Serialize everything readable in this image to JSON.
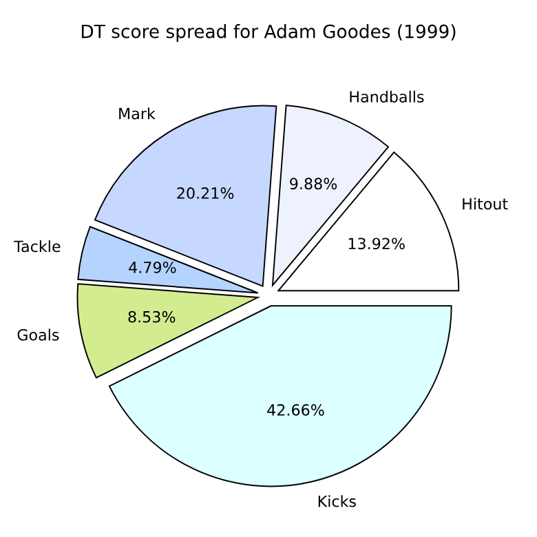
{
  "chart_data": {
    "type": "pie",
    "title": "DT score spread for Adam Goodes (1999)",
    "categories": [
      "Hitout",
      "Handballs",
      "Mark",
      "Tackle",
      "Goals",
      "Kicks"
    ],
    "values": [
      13.92,
      9.88,
      20.21,
      4.79,
      8.53,
      42.66
    ],
    "value_labels": [
      "13.92%",
      "9.88%",
      "20.21%",
      "4.79%",
      "8.53%",
      "42.66%"
    ],
    "colors": [
      "#ffffff",
      "#eef2ff",
      "#c6d8ff",
      "#b4d4ff",
      "#d4ec90",
      "#dcffff"
    ],
    "legend": false
  }
}
